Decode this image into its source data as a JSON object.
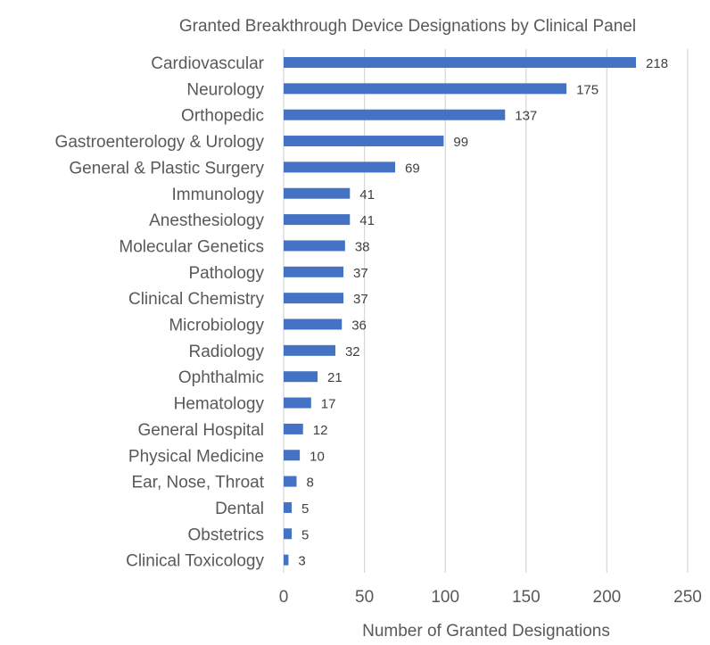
{
  "chart_data": {
    "type": "bar",
    "orientation": "horizontal",
    "title": "Granted Breakthrough Device Designations by Clinical Panel",
    "xlabel": "Number of Granted Designations",
    "ylabel": "",
    "xlim": [
      0,
      250
    ],
    "xticks": [
      0,
      50,
      100,
      150,
      200,
      250
    ],
    "grid": true,
    "legend": "none",
    "bar_color": "#4472c4",
    "categories": [
      "Cardiovascular",
      "Neurology",
      "Orthopedic",
      "Gastroenterology & Urology",
      "General & Plastic Surgery",
      "Immunology",
      "Anesthesiology",
      "Molecular Genetics",
      "Pathology",
      "Clinical Chemistry",
      "Microbiology",
      "Radiology",
      "Ophthalmic",
      "Hematology",
      "General Hospital",
      "Physical Medicine",
      "Ear, Nose, Throat",
      "Dental",
      "Obstetrics",
      "Clinical Toxicology"
    ],
    "values": [
      218,
      175,
      137,
      99,
      69,
      41,
      41,
      38,
      37,
      37,
      36,
      32,
      21,
      17,
      12,
      10,
      8,
      5,
      5,
      3
    ]
  }
}
